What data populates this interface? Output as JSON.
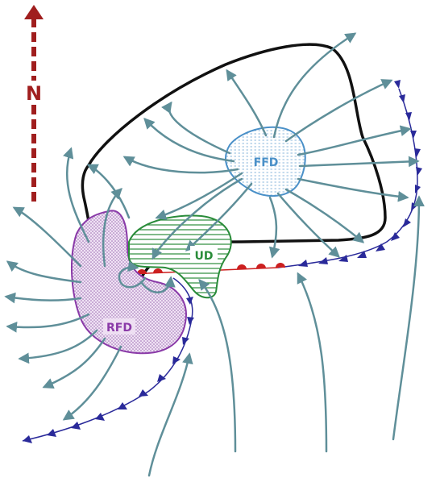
{
  "labels": {
    "north": "N",
    "ffd": "FFD",
    "ud": "UD",
    "rfd": "RFD"
  },
  "colors": {
    "north_arrow": "#a01e1e",
    "streamline": "#5f8f99",
    "ffd": "#4a90c8",
    "ud": "#2a8c3a",
    "rfd": "#8a3aa8",
    "outline": "#111111",
    "cold_front": "#2a2a9a",
    "warm_front": "#cc1f1f"
  }
}
